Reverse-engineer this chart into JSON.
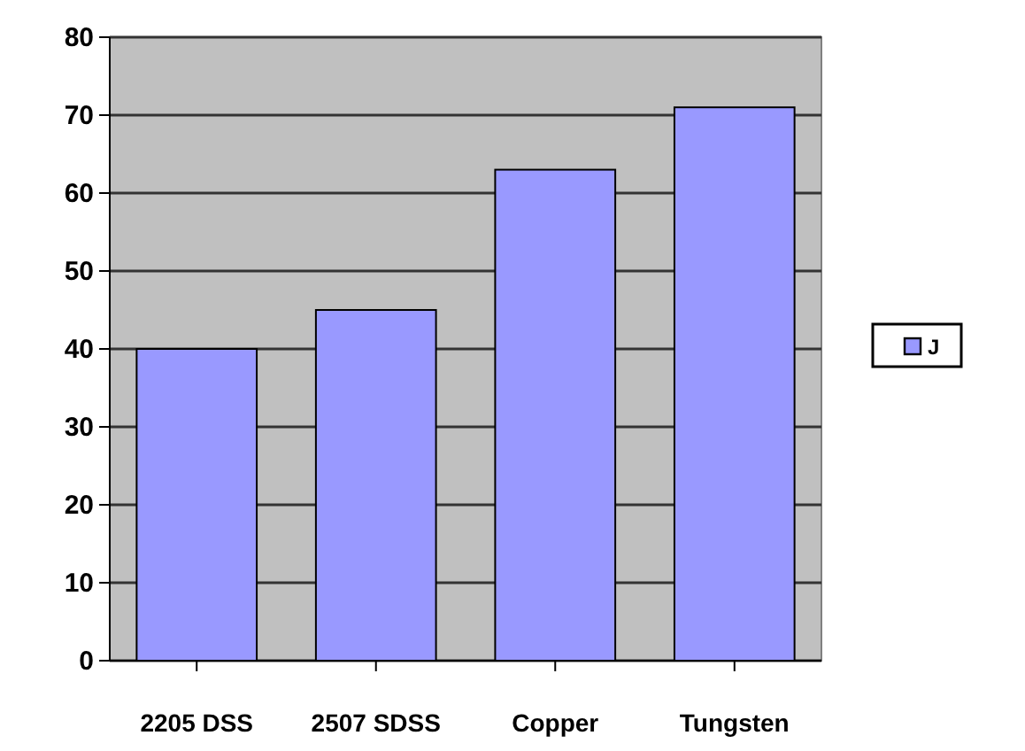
{
  "chart_data": {
    "type": "bar",
    "categories": [
      "2205 DSS",
      "2507 SDSS",
      "Copper",
      "Tungsten"
    ],
    "series": [
      {
        "name": "J",
        "color": "#9999ff",
        "values": [
          40,
          45,
          63,
          71
        ]
      }
    ],
    "ylim": [
      0,
      80
    ],
    "yticks": [
      0,
      10,
      20,
      30,
      40,
      50,
      60,
      70,
      80
    ],
    "grid": "y",
    "legend": "right"
  }
}
